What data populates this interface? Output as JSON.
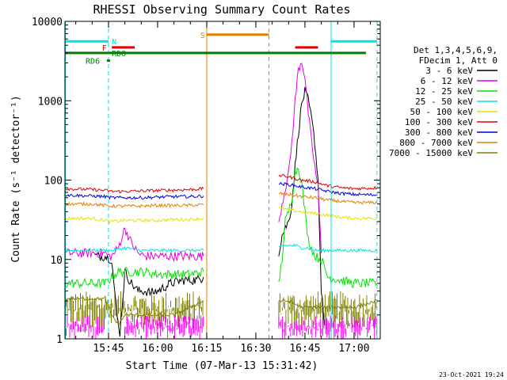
{
  "chart_data": {
    "type": "line",
    "title": "RHESSI Observing Summary Count Rates",
    "xlabel": "Start Time (07-Mar-13 15:31:42)",
    "ylabel": "Count Rate (s⁻¹ detector⁻¹)",
    "yscale": "log",
    "ylim": [
      1,
      10000
    ],
    "xlim": [
      "15:31:42",
      "17:08:00"
    ],
    "x_ticks": [
      "15:45",
      "16:00",
      "16:15",
      "16:30",
      "16:45",
      "17:00"
    ],
    "y_ticks": [
      "1",
      "10",
      "100",
      "1000",
      "10000"
    ],
    "legend_header": [
      "Det 1,3,4,5,6,9,",
      "FDecim 1, Att 0"
    ],
    "legend_placement": "right",
    "series": [
      {
        "name": "3 - 6 keV",
        "color": "#000000",
        "segments": [
          {
            "t": [
              "15:41",
              "15:44",
              "15:46",
              "15:47:30",
              "15:48:30",
              "15:50",
              "15:52",
              "15:54",
              "15:56",
              "15:58",
              "16:00",
              "16:04",
              "16:08",
              "16:12",
              "16:14"
            ],
            "v": [
              11,
              11,
              10,
              2,
              1.2,
              7,
              5,
              4,
              4,
              3.8,
              4,
              5,
              5.5,
              5.5,
              6
            ]
          },
          {
            "t": [
              "16:37",
              "16:38",
              "16:39",
              "16:40",
              "16:41",
              "16:42",
              "16:43",
              "16:44",
              "16:45",
              "16:46",
              "16:47",
              "16:48",
              "16:49",
              "16:50",
              "16:51"
            ],
            "v": [
              12,
              20,
              25,
              30,
              50,
              150,
              400,
              900,
              1300,
              1000,
              600,
              300,
              100,
              4,
              1.5
            ]
          }
        ]
      },
      {
        "name": "6 - 12 keV",
        "color": "#e400e4",
        "segments": [
          {
            "t": [
              "15:31:42",
              "15:44",
              "15:45",
              "15:46",
              "15:48",
              "15:50",
              "15:52",
              "15:54",
              "15:56",
              "15:58",
              "16:00",
              "16:05",
              "16:10",
              "16:14"
            ],
            "v": [
              12,
              12,
              11,
              11,
              14,
              25,
              16,
              12,
              11,
              11,
              11,
              11,
              11,
              11
            ]
          },
          {
            "t": [
              "16:37",
              "16:38",
              "16:39",
              "16:40",
              "16:41",
              "16:42",
              "16:43",
              "16:44",
              "16:45",
              "16:46",
              "16:47",
              "16:48",
              "16:49",
              "16:50"
            ],
            "v": [
              30,
              50,
              80,
              120,
              300,
              1000,
              2500,
              3200,
              2000,
              700,
              300,
              150,
              80,
              12
            ]
          }
        ]
      },
      {
        "name": "12 - 25 keV",
        "color": "#00e400",
        "segments": [
          {
            "t": [
              "15:31:42",
              "15:40",
              "15:44",
              "15:46",
              "15:48",
              "15:52",
              "15:56",
              "16:00",
              "16:05",
              "16:10",
              "16:14"
            ],
            "v": [
              5,
              5,
              5,
              6,
              7,
              7,
              7,
              6.5,
              6.5,
              6.5,
              7
            ]
          },
          {
            "t": [
              "16:37",
              "16:38",
              "16:39",
              "16:40",
              "16:41",
              "16:42",
              "16:43",
              "16:44",
              "16:45",
              "16:46",
              "16:47",
              "16:48",
              "16:50",
              "16:52",
              "17:00",
              "17:07"
            ],
            "v": [
              5,
              10,
              30,
              40,
              60,
              120,
              150,
              90,
              40,
              18,
              14,
              11,
              10,
              6,
              5,
              5
            ]
          }
        ]
      },
      {
        "name": "25 - 50 keV",
        "color": "#00e4e4",
        "segments": [
          {
            "t": [
              "15:31:42",
              "15:40",
              "15:44",
              "15:46",
              "15:50",
              "15:55",
              "16:00",
              "16:05",
              "16:10",
              "16:14"
            ],
            "v": [
              13,
              13,
              13,
              13,
              14,
              13,
              13,
              13,
              13,
              13
            ]
          },
          {
            "t": [
              "16:37",
              "16:38",
              "16:40",
              "16:42",
              "16:44",
              "16:46",
              "16:48",
              "16:50",
              "16:55",
              "17:00",
              "17:07"
            ],
            "v": [
              14,
              15,
              15,
              15,
              14,
              14,
              13,
              13,
              13,
              13,
              13
            ]
          }
        ]
      },
      {
        "name": "50 - 100 keV",
        "color": "#e4e400",
        "segments": [
          {
            "t": [
              "15:31:42",
              "15:40",
              "15:44",
              "15:46",
              "15:50",
              "15:55",
              "16:00",
              "16:05",
              "16:10",
              "16:14"
            ],
            "v": [
              33,
              33,
              31,
              30,
              31,
              31,
              31,
              32,
              32,
              33
            ]
          },
          {
            "t": [
              "16:37",
              "16:40",
              "16:44",
              "16:48",
              "16:52",
              "16:56",
              "17:00",
              "17:07"
            ],
            "v": [
              45,
              42,
              40,
              38,
              36,
              34,
              33,
              33
            ]
          }
        ]
      },
      {
        "name": "100 - 300 keV",
        "color": "#e40000",
        "segments": [
          {
            "t": [
              "15:31:42",
              "15:40",
              "15:44",
              "15:46",
              "15:50",
              "15:55",
              "16:00",
              "16:05",
              "16:10",
              "16:14"
            ],
            "v": [
              78,
              76,
              74,
              72,
              72,
              73,
              74,
              75,
              76,
              78
            ]
          },
          {
            "t": [
              "16:37",
              "16:40",
              "16:44",
              "16:48",
              "16:52",
              "16:56",
              "17:00",
              "17:07"
            ],
            "v": [
              115,
              110,
              100,
              95,
              85,
              80,
              78,
              80
            ]
          }
        ]
      },
      {
        "name": "300 - 800 keV",
        "color": "#0000e4",
        "segments": [
          {
            "t": [
              "15:31:42",
              "15:40",
              "15:44",
              "15:46",
              "15:50",
              "15:55",
              "16:00",
              "16:05",
              "16:10",
              "16:14"
            ],
            "v": [
              65,
              63,
              62,
              60,
              60,
              60,
              61,
              62,
              62,
              63
            ]
          },
          {
            "t": [
              "16:37",
              "16:40",
              "16:44",
              "16:48",
              "16:52",
              "16:56",
              "17:00",
              "17:07"
            ],
            "v": [
              90,
              88,
              82,
              78,
              72,
              68,
              66,
              65
            ]
          }
        ]
      },
      {
        "name": "800 - 7000 keV",
        "color": "#e48000",
        "segments": [
          {
            "t": [
              "15:31:42",
              "15:40",
              "15:44",
              "15:46",
              "15:50",
              "15:55",
              "16:00",
              "16:05",
              "16:10",
              "16:14"
            ],
            "v": [
              50,
              50,
              48,
              47,
              47,
              47,
              48,
              48,
              48,
              49
            ]
          },
          {
            "t": [
              "16:37",
              "16:40",
              "16:44",
              "16:48",
              "16:52",
              "16:56",
              "17:00",
              "17:07"
            ],
            "v": [
              68,
              66,
              62,
              60,
              56,
              54,
              52,
              52
            ]
          }
        ]
      },
      {
        "name": "7000 - 15000 keV",
        "color": "#808000",
        "segments": [
          {
            "t": [
              "15:31:42",
              "15:44",
              "15:46",
              "15:48",
              "15:50",
              "15:55",
              "16:00",
              "16:05",
              "16:10",
              "16:14"
            ],
            "v": [
              3.2,
              3.2,
              2,
              1.5,
              2,
              2,
              2,
              2,
              2.5,
              3
            ]
          },
          {
            "t": [
              "16:37",
              "16:40",
              "16:44",
              "16:48",
              "16:52",
              "16:56",
              "17:00",
              "17:07"
            ],
            "v": [
              3,
              3,
              2.5,
              2.5,
              2.5,
              2.5,
              2.5,
              3
            ]
          }
        ]
      }
    ],
    "noise_bands": [
      {
        "series": "7000 - 15000 keV",
        "color": "#808000",
        "t": [
          [
            "15:31:42",
            "16:14"
          ],
          [
            "16:37",
            "17:07"
          ]
        ],
        "lo": 1.3,
        "hi": 4.0
      },
      {
        "series": "6 - 12 keV",
        "color": "#ff00ff",
        "t": [
          [
            "15:31:42",
            "15:44"
          ],
          [
            "16:51",
            "17:07"
          ]
        ],
        "lo": 1.0,
        "hi": 2.0
      },
      {
        "series": "6 - 12 keV",
        "color": "#ff00ff",
        "t": [
          [
            "15:50",
            "16:14"
          ],
          [
            "16:37",
            "16:51"
          ]
        ],
        "lo": 1.0,
        "hi": 2.0
      }
    ],
    "state_bars": [
      {
        "label": "N",
        "color": "#00e4e4",
        "t": [
          [
            "15:31:42",
            "15:45"
          ],
          [
            "16:53",
            "17:07"
          ]
        ],
        "level": 5600,
        "label_t": "15:46"
      },
      {
        "label": "F",
        "color": "#e40000",
        "t": [
          [
            "15:46",
            "15:53"
          ],
          [
            "16:42",
            "16:49"
          ]
        ],
        "level": 4700,
        "label_t": "15:43"
      },
      {
        "label": "S",
        "color": "#e48000",
        "t": [
          [
            "16:15",
            "16:34"
          ]
        ],
        "level": 6800,
        "label_t": "16:13"
      },
      {
        "label": "RDO",
        "color": "#008000",
        "t": [
          [
            "15:46",
            "15:47"
          ]
        ],
        "level": 4000,
        "label_t": "15:46"
      },
      {
        "label": "RD6",
        "color": "#008000",
        "t": [
          [
            "15:44:30",
            "15:45:30"
          ]
        ],
        "level": 3200,
        "label_t": "15:38"
      }
    ],
    "green_line_level": 4000,
    "vertical_markers": [
      {
        "color": "#00e4e4",
        "t": "15:31:50",
        "style": "solid"
      },
      {
        "color": "#00e4e4",
        "t": "15:45",
        "style": "dashed"
      },
      {
        "color": "#e48000",
        "t": "16:15",
        "style": "solid"
      },
      {
        "color": "#e48000",
        "t": "16:34",
        "style": "dashed"
      },
      {
        "color": "#00e4e4",
        "t": "16:53",
        "style": "solid"
      },
      {
        "color": "#00e4e4",
        "t": "17:07",
        "style": "dashed"
      }
    ],
    "footer": "23-Oct-2021 19:24"
  }
}
